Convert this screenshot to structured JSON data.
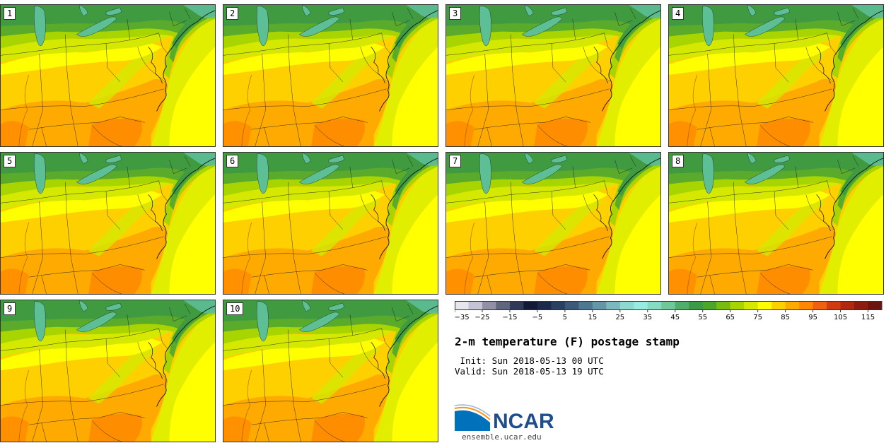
{
  "panels": [
    {
      "label": "1"
    },
    {
      "label": "2"
    },
    {
      "label": "3"
    },
    {
      "label": "4"
    },
    {
      "label": "5"
    },
    {
      "label": "6"
    },
    {
      "label": "7"
    },
    {
      "label": "8"
    },
    {
      "label": "9"
    },
    {
      "label": "10"
    }
  ],
  "colorbar": {
    "colors": [
      "#e6e6ee",
      "#c4c4d6",
      "#9090a8",
      "#5e6680",
      "#2e3a58",
      "#121a38",
      "#1c2a4a",
      "#2a4060",
      "#3c5a76",
      "#4e7890",
      "#6496a8",
      "#7cb8c0",
      "#8ed8d0",
      "#96ece0",
      "#86dcc0",
      "#6ec898",
      "#4eae6c",
      "#3a9a48",
      "#4ca62a",
      "#78bc10",
      "#a8d400",
      "#d4e800",
      "#ffff00",
      "#ffd000",
      "#ffaa00",
      "#ff8800",
      "#f06010",
      "#d03c10",
      "#b02810",
      "#8c1c10",
      "#6c1410"
    ],
    "ticks": [
      "−35",
      "−25",
      "−15",
      "−5",
      "5",
      "15",
      "25",
      "35",
      "45",
      "55",
      "65",
      "75",
      "85",
      "95",
      "105",
      "115"
    ]
  },
  "title": "2-m temperature (F) postage stamp",
  "init": " Init: Sun 2018-05-13 00 UTC",
  "valid": "Valid: Sun 2018-05-13 19 UTC",
  "logo": {
    "name": "NCAR",
    "site": "ensemble.ucar.edu",
    "blue": "#0072bc",
    "orange": "#f7941d"
  },
  "map_colors": {
    "lake": "#5cbf96",
    "dark_green": "#3f9a40",
    "green": "#5aaa2c",
    "yellow_green": "#a8d400",
    "light_yellow_green": "#d4e800",
    "yellow": "#ffff00",
    "gold": "#ffd000",
    "orange": "#ffaa00",
    "dark_orange": "#ff8800",
    "ocean_far": "#ffff00",
    "ocean_near": "#e2ee00"
  }
}
